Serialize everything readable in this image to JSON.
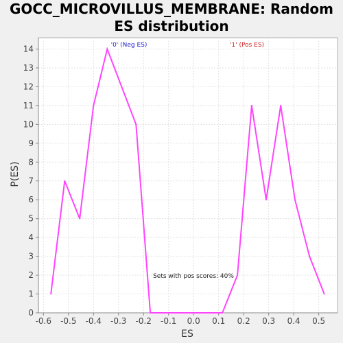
{
  "chart_data": {
    "type": "line",
    "title_line1": "GOCC_MICROVILLUS_MEMBRANE: Random",
    "title_line2": "ES distribution",
    "xlabel": "ES",
    "ylabel": "P(ES)",
    "xlim": [
      -0.62,
      0.575
    ],
    "ylim": [
      0,
      14.6
    ],
    "xticks": [
      "-0.6",
      "-0.5",
      "-0.4",
      "-0.3",
      "-0.2",
      "-0.1",
      "0.0",
      "0.1",
      "0.2",
      "0.3",
      "0.4",
      "0.5"
    ],
    "yticks": [
      "0",
      "1",
      "2",
      "3",
      "4",
      "5",
      "6",
      "7",
      "8",
      "9",
      "10",
      "11",
      "12",
      "13",
      "14"
    ],
    "grid": true,
    "series": [
      {
        "color": "#ff44ff",
        "x": [
          -0.57,
          -0.515,
          -0.455,
          -0.4,
          -0.345,
          -0.23,
          -0.173,
          -0.03,
          0.115,
          0.175,
          0.232,
          0.29,
          0.348,
          0.405,
          0.463,
          0.522
        ],
        "y": [
          1,
          7,
          5,
          11,
          14,
          10,
          0,
          0,
          0,
          2,
          11,
          6,
          11,
          6,
          3,
          1
        ]
      }
    ],
    "annotations": [
      {
        "id": "neg",
        "text": "'0' (Neg ES)",
        "color": "#2222cc"
      },
      {
        "id": "pos",
        "text": "'1' (Pos ES)",
        "color": "#cc2222"
      },
      {
        "id": "sets",
        "text": "Sets with pos scores: 40%",
        "color": "#222222"
      }
    ]
  }
}
